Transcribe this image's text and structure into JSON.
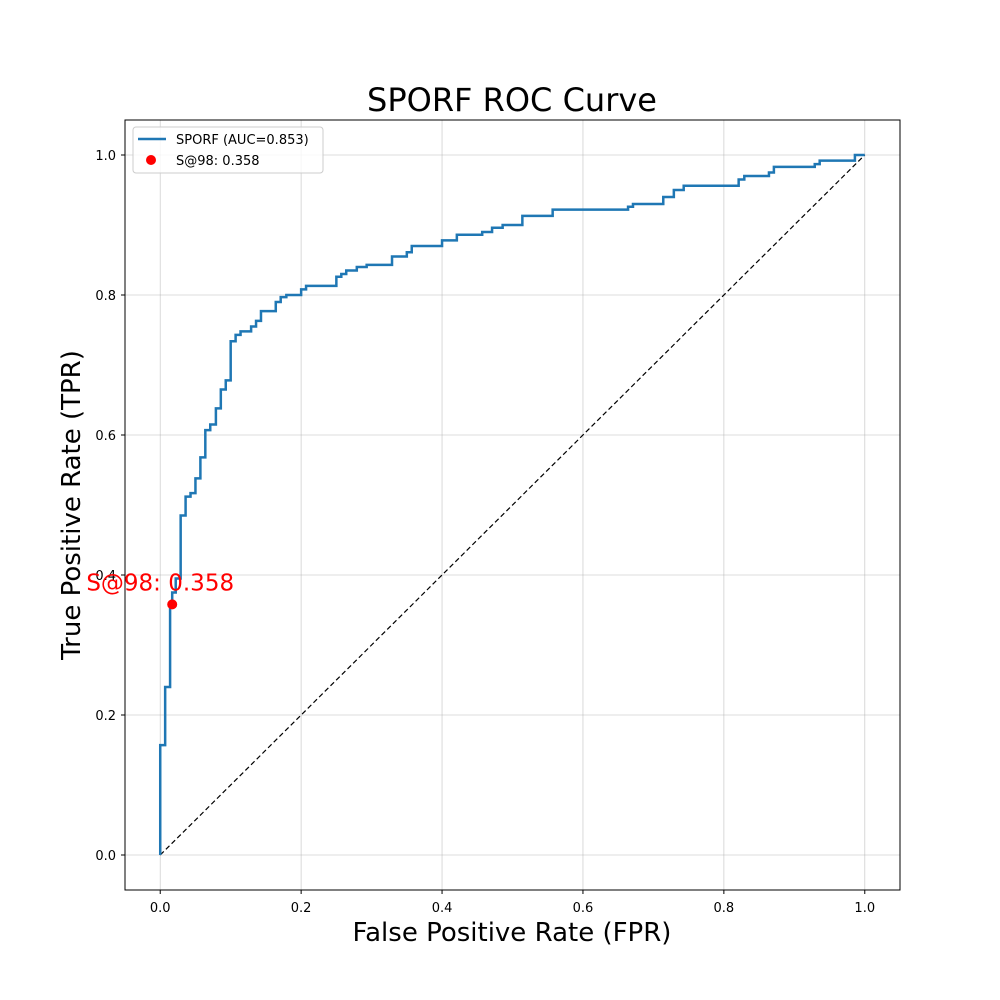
{
  "chart_data": {
    "type": "line",
    "title": "SPORF ROC Curve",
    "xlabel": "False Positive Rate (FPR)",
    "ylabel": "True Positive Rate (TPR)",
    "xlim": [
      -0.05,
      1.05
    ],
    "ylim": [
      -0.05,
      1.05
    ],
    "xticks": [
      0.0,
      0.2,
      0.4,
      0.6,
      0.8,
      1.0
    ],
    "yticks": [
      0.0,
      0.2,
      0.4,
      0.6,
      0.8,
      1.0
    ],
    "xtick_labels": [
      "0.0",
      "0.2",
      "0.4",
      "0.6",
      "0.8",
      "1.0"
    ],
    "ytick_labels": [
      "0.0",
      "0.2",
      "0.4",
      "0.6",
      "0.8",
      "1.0"
    ],
    "grid": true,
    "legend_position": "top-left",
    "series": [
      {
        "name": "SPORF (AUC=0.853)",
        "color": "#1f77b4",
        "x": [
          0,
          0,
          0.007,
          0.007,
          0.014,
          0.014,
          0.017,
          0.017,
          0.022,
          0.022,
          0.029,
          0.029,
          0.036,
          0.036,
          0.043,
          0.043,
          0.05,
          0.05,
          0.057,
          0.057,
          0.064,
          0.064,
          0.071,
          0.071,
          0.079,
          0.079,
          0.086,
          0.086,
          0.093,
          0.093,
          0.1,
          0.1,
          0.107,
          0.107,
          0.114,
          0.114,
          0.129,
          0.129,
          0.136,
          0.136,
          0.143,
          0.143,
          0.164,
          0.164,
          0.171,
          0.171,
          0.179,
          0.179,
          0.2,
          0.2,
          0.207,
          0.207,
          0.25,
          0.25,
          0.257,
          0.257,
          0.264,
          0.264,
          0.279,
          0.279,
          0.293,
          0.293,
          0.329,
          0.329,
          0.35,
          0.35,
          0.357,
          0.357,
          0.4,
          0.4,
          0.421,
          0.421,
          0.457,
          0.457,
          0.471,
          0.471,
          0.486,
          0.486,
          0.514,
          0.514,
          0.557,
          0.557,
          0.664,
          0.664,
          0.671,
          0.671,
          0.714,
          0.714,
          0.729,
          0.729,
          0.743,
          0.743,
          0.821,
          0.821,
          0.829,
          0.829,
          0.864,
          0.864,
          0.871,
          0.871,
          0.929,
          0.929,
          0.936,
          0.936,
          0.986,
          0.986,
          1.0
        ],
        "y": [
          0,
          0.157,
          0.157,
          0.24,
          0.24,
          0.358,
          0.358,
          0.375,
          0.375,
          0.395,
          0.395,
          0.485,
          0.485,
          0.512,
          0.512,
          0.517,
          0.517,
          0.538,
          0.538,
          0.568,
          0.568,
          0.607,
          0.607,
          0.615,
          0.615,
          0.638,
          0.638,
          0.665,
          0.665,
          0.678,
          0.678,
          0.734,
          0.734,
          0.743,
          0.743,
          0.748,
          0.748,
          0.755,
          0.755,
          0.763,
          0.763,
          0.777,
          0.777,
          0.79,
          0.79,
          0.797,
          0.797,
          0.8,
          0.8,
          0.808,
          0.808,
          0.813,
          0.813,
          0.826,
          0.826,
          0.83,
          0.83,
          0.835,
          0.835,
          0.84,
          0.84,
          0.843,
          0.843,
          0.855,
          0.855,
          0.861,
          0.861,
          0.87,
          0.87,
          0.878,
          0.878,
          0.886,
          0.886,
          0.89,
          0.89,
          0.896,
          0.896,
          0.9,
          0.9,
          0.913,
          0.913,
          0.922,
          0.922,
          0.926,
          0.926,
          0.93,
          0.93,
          0.94,
          0.94,
          0.95,
          0.95,
          0.956,
          0.956,
          0.965,
          0.965,
          0.97,
          0.97,
          0.975,
          0.975,
          0.983,
          0.983,
          0.987,
          0.987,
          0.992,
          0.992,
          1.0,
          1.0
        ]
      },
      {
        "name": "S@98: 0.358",
        "color": "#ff0000",
        "marker": "circle",
        "x": [
          0.017
        ],
        "y": [
          0.358
        ]
      }
    ],
    "reference_line": {
      "x": [
        0,
        1
      ],
      "y": [
        0,
        1
      ],
      "color": "#000000",
      "dash": true
    },
    "annotation": {
      "text": "S@98: 0.358",
      "x": 0.017,
      "y": 0.358,
      "color": "#ff0000"
    }
  }
}
